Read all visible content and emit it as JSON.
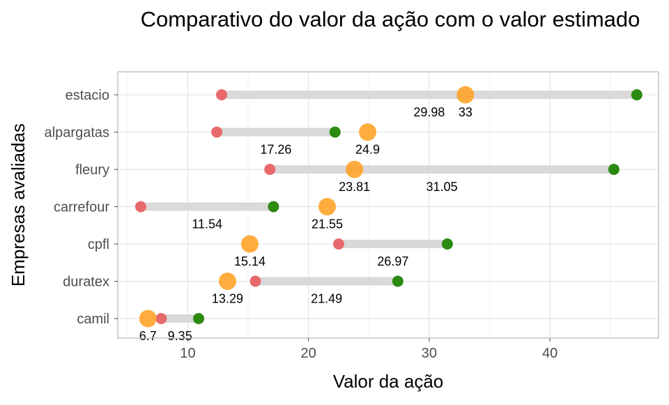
{
  "chart_data": {
    "type": "dumbbell",
    "title": "Comparativo do valor da ação com o valor estimado",
    "xlabel": "Valor da ação",
    "ylabel": "Empresas avaliadas",
    "xlim": [
      4.2,
      49.0
    ],
    "x_ticks": [
      10,
      20,
      30,
      40
    ],
    "grid": true,
    "legend": "none",
    "colors": {
      "low": "#e8696b",
      "high": "#2b8a10",
      "segment": "#d9d9d9",
      "price": "#ff9f1c",
      "grid": "#e0e0e0",
      "border": "#b3b3b3"
    },
    "categories": [
      "estacio",
      "alpargatas",
      "fleury",
      "carrefour",
      "cpfl",
      "duratex",
      "camil"
    ],
    "series": [
      {
        "values": [
          {
            "company": "estacio",
            "low": 12.8,
            "high": 47.2,
            "price": 33.0,
            "price_label": "33",
            "mid_label": "29.98"
          },
          {
            "company": "alpargatas",
            "low": 12.4,
            "high": 22.2,
            "price": 24.9,
            "price_label": "24.9",
            "mid_label": "17.26"
          },
          {
            "company": "fleury",
            "low": 16.8,
            "high": 45.3,
            "price": 23.81,
            "price_label": "23.81",
            "mid_label": "31.05"
          },
          {
            "company": "carrefour",
            "low": 6.1,
            "high": 17.1,
            "price": 21.55,
            "price_label": "21.55",
            "mid_label": "11.54"
          },
          {
            "company": "cpfl",
            "low": 22.5,
            "high": 31.5,
            "price": 15.14,
            "price_label": "15.14",
            "mid_label": "26.97"
          },
          {
            "company": "duratex",
            "low": 15.6,
            "high": 27.4,
            "price": 13.29,
            "price_label": "13.29",
            "mid_label": "21.49"
          },
          {
            "company": "camil",
            "low": 7.8,
            "high": 10.9,
            "price": 6.7,
            "price_label": "6.7",
            "mid_label": "9.35"
          }
        ]
      }
    ]
  }
}
